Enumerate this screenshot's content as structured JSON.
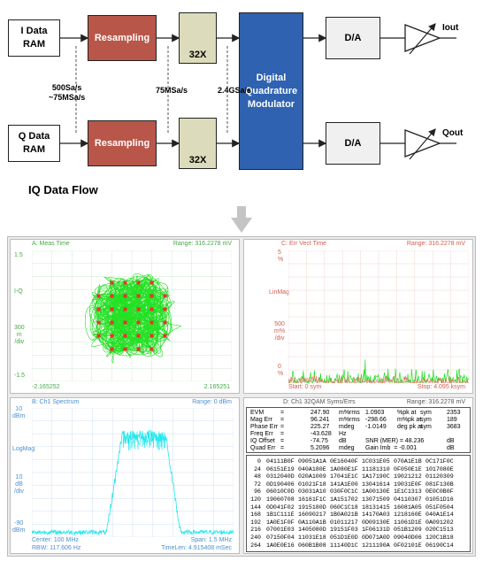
{
  "diagram": {
    "i_ram": "I Data\nRAM",
    "q_ram": "Q Data\nRAM",
    "resampling": "Resampling",
    "interp": "32X",
    "dqm": "Digital\nQuadrature\nModulator",
    "da": "D/A",
    "iout": "Iout",
    "qout": "Qout",
    "rate1": "500Sa/s\n~75MSa/s",
    "rate2": "75MSa/s",
    "rate3": "2.4GSa/s",
    "title": "IQ Data Flow"
  },
  "panes": {
    "a": {
      "title": "A: Meas Time",
      "range": "Range: 316.2278 mV",
      "y_labels": [
        "1.5",
        "I-Q",
        "300\nm\n/div",
        "-1.5"
      ],
      "x_left": "-2.165252",
      "x_right": "2.165251"
    },
    "c": {
      "title": "C: Err Vect Time",
      "range": "Range: 316.2278 mV",
      "y_labels": [
        "5\n%",
        "LinMag",
        "500\nm%\n/div",
        "0\n%"
      ],
      "x_left": "Start: 0  sym",
      "x_right": "Stop: 4.095 ksym"
    },
    "b": {
      "title": "B: Ch1 Spectrum",
      "range": "Range: 0 dBm",
      "y_labels": [
        "10\ndBm",
        "LogMag",
        "10\ndB\n/div",
        "-90\ndBm"
      ],
      "foot_l1": "Center: 100 MHz",
      "foot_r1": "Span: 1.5 MHz",
      "foot_l2": "RBW: 117.606 Hz",
      "foot_r2": "TimeLen: 4.915408 mSec"
    },
    "d": {
      "title": "D: Ch1 32QAM Syms/Errs",
      "range": "Range: 316.2278 mV",
      "metrics": [
        [
          "EVM",
          "=",
          "247.90",
          "m%rms",
          "1.0903",
          "%pk at",
          "sym",
          "2353"
        ],
        [
          "Mag Err",
          "=",
          "96.241",
          "m%rms",
          "-298.66",
          "m%pk at",
          "sym",
          "189"
        ],
        [
          "Phase Err",
          "=",
          "225.27",
          "mdeg",
          "-1.0149",
          "deg pk at",
          "sym",
          "3683"
        ],
        [
          "Freq Err",
          "=",
          "-43.628",
          "Hz",
          "",
          "",
          "",
          ""
        ],
        [
          "IQ Offset",
          "=",
          "-74.75",
          "dB",
          "SNR (MER) = 48.236",
          "",
          "",
          "dB"
        ],
        [
          "Quad Err",
          "=",
          "5.2096",
          "mdeg",
          "Gain Imb  = -0.001",
          "",
          "",
          "dB"
        ]
      ],
      "rows": [
        [
          " 0",
          "04111B0F",
          "09051A1A",
          "0E16040F",
          "1C031E05",
          "070A1E1B",
          "0C171F0C"
        ],
        [
          "24",
          "06151E19",
          "040A180E",
          "1A080E1F",
          "11181310",
          "0F050E1E",
          "1017080E"
        ],
        [
          "48",
          "0312040D",
          "020A1009",
          "17041E1C",
          "1A17190C",
          "19021212",
          "01120309"
        ],
        [
          "72",
          "0D190406",
          "01021F18",
          "141A1E00",
          "13041614",
          "19031E0F",
          "081F130B"
        ],
        [
          "96",
          "06010C0D",
          "03031A10",
          "030F0C1C",
          "1A00130E",
          "1E1C1313",
          "0E0C0B0F"
        ],
        [
          "120",
          "19060708",
          "16161F1C",
          "1A151702",
          "13071509",
          "04110307",
          "01051D16"
        ],
        [
          "144",
          "0D041F02",
          "1915180D",
          "060C1C18",
          "18131415",
          "16081A05",
          "051F0504"
        ],
        [
          "168",
          "1B1C111E",
          "16090217",
          "1B0A021B",
          "14170A03",
          "1218160E",
          "040A1E14"
        ],
        [
          "192",
          "1A0E1F0F",
          "0A110A1B",
          "01011217",
          "0D09130E",
          "11061D1E",
          "0A091202"
        ],
        [
          "216",
          "07001E03",
          "1405080D",
          "19151F03",
          "1F06131D",
          "051B1209",
          "020C1513"
        ],
        [
          "240",
          "07150F04",
          "11031E18",
          "051D1E0D",
          "0D071A0D",
          "09040D06",
          "120C1B18"
        ],
        [
          "264",
          "1A0E0E16",
          "060B1B08",
          "11140D1C",
          "1211190A",
          "0F02101E",
          "06190C14"
        ]
      ]
    }
  },
  "colors": {
    "trace_green": "#22e022",
    "trace_cyan": "#22e8ee",
    "ideal_red": "#ee3030",
    "resampling": "#b9564a",
    "filter": "#dcdcbc",
    "modulator": "#2f62b0"
  }
}
